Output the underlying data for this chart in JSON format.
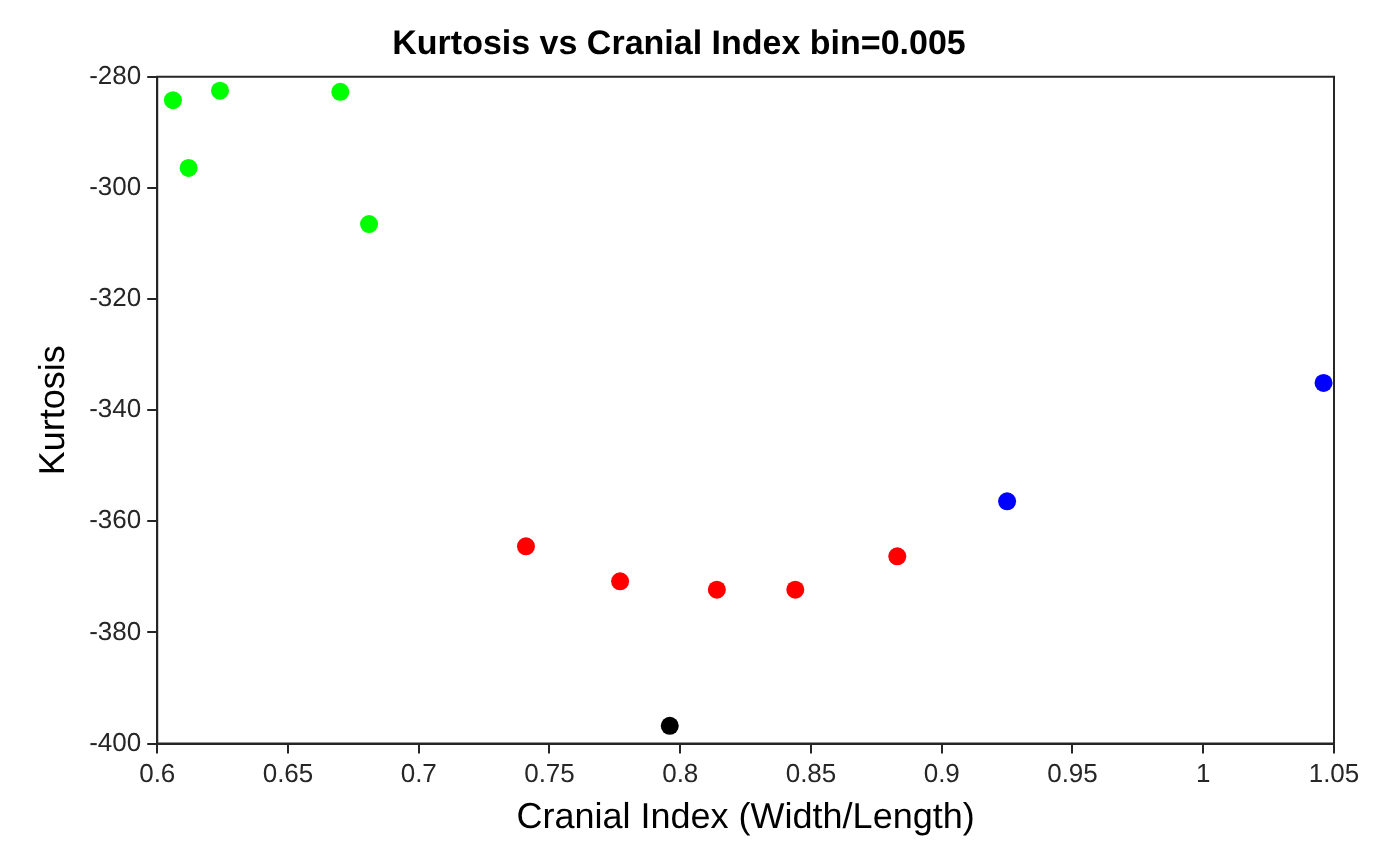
{
  "chart_data": {
    "type": "scatter",
    "title": "Kurtosis vs Cranial Index bin=0.005",
    "xlabel": "Cranial Index (Width/Length)",
    "ylabel": "Kurtosis",
    "series": [
      {
        "color": "#00ff00",
        "x": [
          0.606,
          0.612,
          0.624,
          0.67,
          0.681
        ],
        "values": [
          -284.2,
          -296.4,
          -282.5,
          -282.7,
          -306.5
        ]
      },
      {
        "color": "#ff0000",
        "x": [
          0.741,
          0.777,
          0.814,
          0.844,
          0.883
        ],
        "values": [
          -364.5,
          -370.8,
          -372.3,
          -372.3,
          -366.3
        ]
      },
      {
        "color": "#000000",
        "x": [
          0.796
        ],
        "values": [
          -396.8
        ]
      },
      {
        "color": "#0000ff",
        "x": [
          0.925,
          1.046
        ],
        "values": [
          -356.4,
          -335.1
        ]
      }
    ],
    "xlim": [
      0.6,
      1.05
    ],
    "xticks": [
      0.6,
      0.65,
      0.7,
      0.75,
      0.8,
      0.85,
      0.9,
      0.95,
      1,
      1.05
    ],
    "ylim": [
      -400,
      -280
    ],
    "yticks": [
      -400,
      -380,
      -360,
      -340,
      -320,
      -300,
      -280
    ],
    "grid": false,
    "legend": false,
    "marker": "circle"
  }
}
